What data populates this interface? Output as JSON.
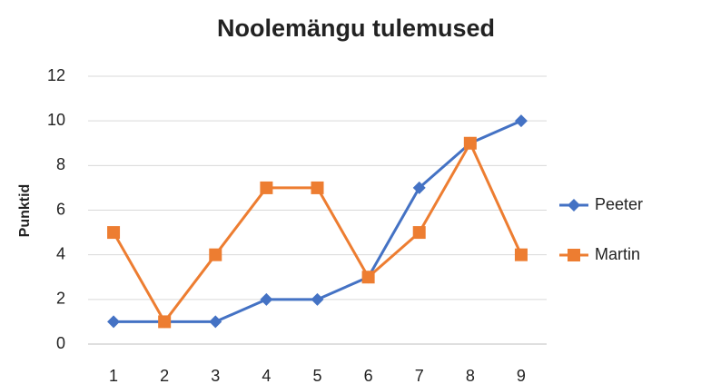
{
  "chart_data": {
    "type": "line",
    "title": "Noolemängu tulemused",
    "y_label": "Punktid",
    "categories": [
      "1",
      "2",
      "3",
      "4",
      "5",
      "6",
      "7",
      "8",
      "9"
    ],
    "series": [
      {
        "name": "Peeter",
        "color": "#4472c4",
        "marker": "diamond",
        "values": [
          1,
          1,
          1,
          2,
          2,
          3,
          7,
          9,
          10
        ]
      },
      {
        "name": "Martin",
        "color": "#ed7d31",
        "marker": "square",
        "values": [
          5,
          1,
          4,
          7,
          7,
          3,
          5,
          9,
          4
        ]
      }
    ],
    "ylim": [
      0,
      12
    ],
    "yticks": [
      0,
      2,
      4,
      6,
      8,
      10,
      12
    ],
    "grid": true,
    "legend": "right"
  }
}
